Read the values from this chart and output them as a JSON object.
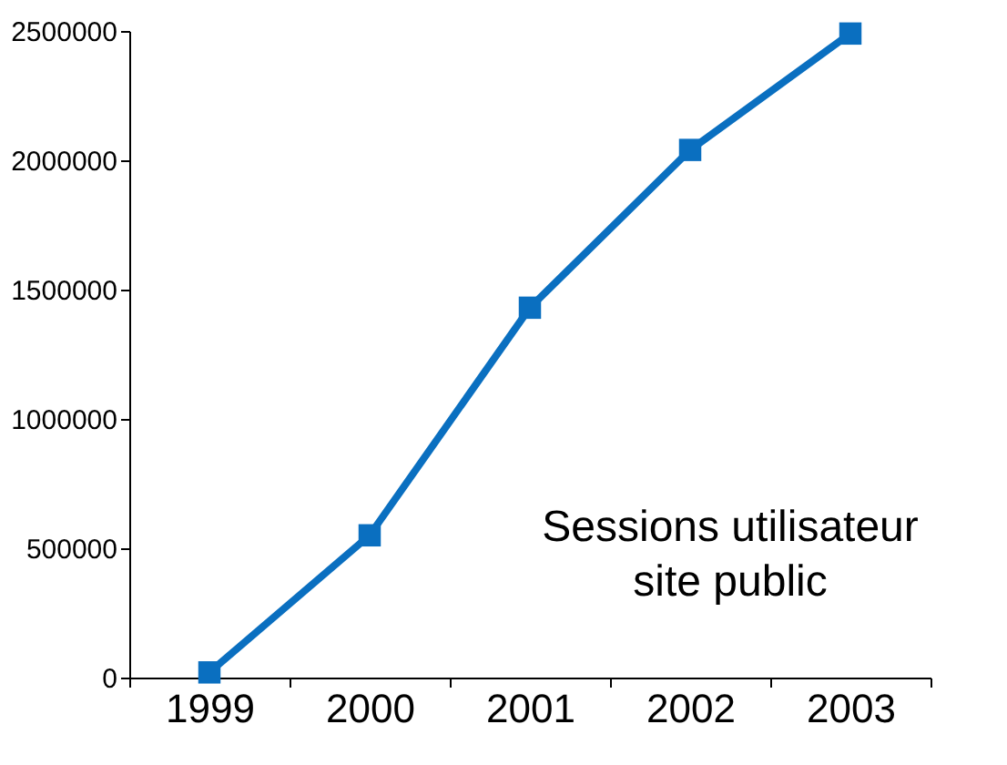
{
  "chart_data": {
    "type": "line",
    "categories": [
      "1999",
      "2000",
      "2001",
      "2002",
      "2003"
    ],
    "series": [
      {
        "color": "#0a6fc0",
        "values": [
          20000,
          550000,
          1430000,
          2040000,
          2490000
        ]
      }
    ],
    "ylim": [
      0,
      2500000
    ],
    "yticks": [
      0,
      500000,
      1000000,
      1500000,
      2000000,
      2500000
    ],
    "marker": "square",
    "line_style": "solid",
    "grid": false,
    "annotations": [
      "Sessions utilisateur\nsite public"
    ]
  }
}
